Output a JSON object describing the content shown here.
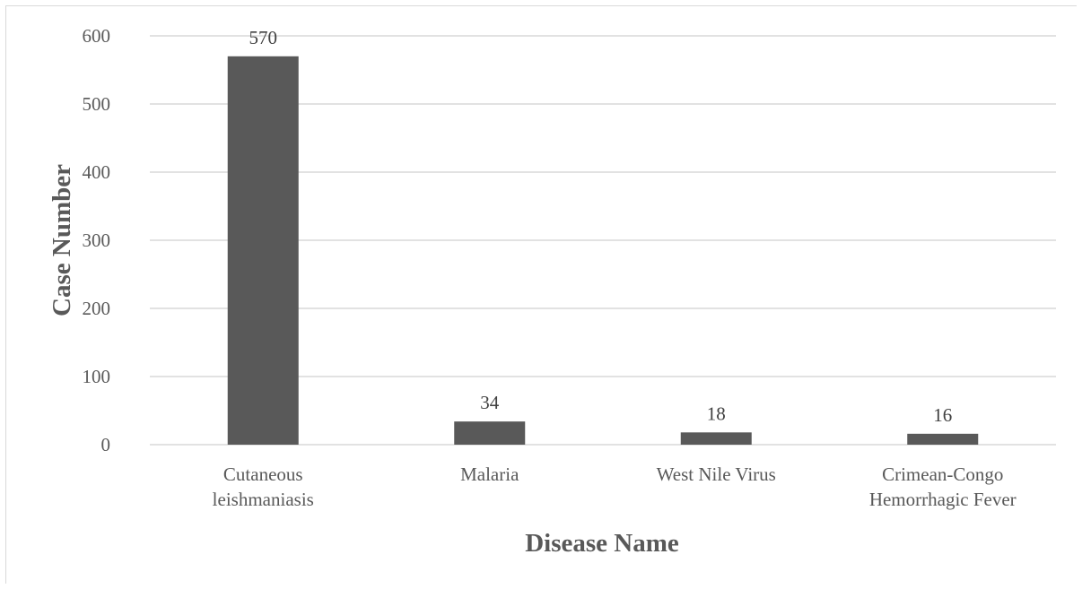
{
  "chart_data": {
    "type": "bar",
    "title": "",
    "xlabel": "Disease Name",
    "ylabel": "Case Number",
    "categories": [
      [
        "Cutaneous",
        "leishmaniasis"
      ],
      [
        "Malaria"
      ],
      [
        "West Nile Virus"
      ],
      [
        "Crimean-Congo",
        "Hemorrhagic Fever"
      ]
    ],
    "values": [
      570,
      34,
      18,
      16
    ],
    "data_labels": [
      "570",
      "34",
      "18",
      "16"
    ],
    "ylim": [
      0,
      600
    ],
    "yticks": [
      0,
      100,
      200,
      300,
      400,
      500,
      600
    ],
    "grid": true,
    "legend": "none",
    "bar_color": "#595959",
    "grid_color": "#d9d9d9"
  }
}
